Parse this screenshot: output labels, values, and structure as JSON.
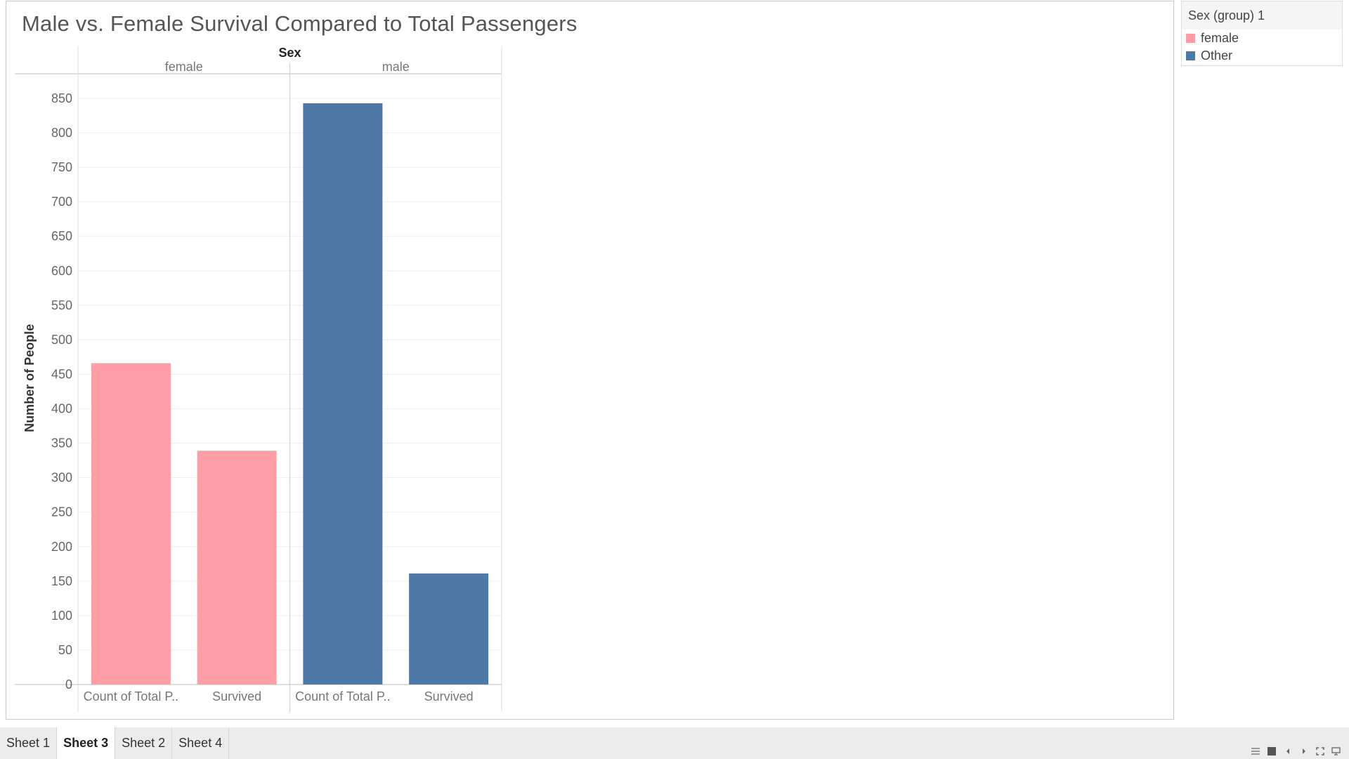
{
  "chart_data": {
    "type": "bar",
    "title": "Male vs. Female Survival Compared to Total Passengers",
    "column_header": "Sex",
    "ylabel": "Number of People",
    "ylim": [
      0,
      850
    ],
    "yticks": [
      0,
      50,
      100,
      150,
      200,
      250,
      300,
      350,
      400,
      450,
      500,
      550,
      600,
      650,
      700,
      750,
      800,
      850
    ],
    "grid": true,
    "panes": [
      {
        "name": "female",
        "color": "#ff9da7",
        "categories": [
          "Count of Total P..",
          "Survived"
        ],
        "values": [
          466,
          339
        ]
      },
      {
        "name": "male",
        "color": "#4e79a7",
        "categories": [
          "Count of Total P..",
          "Survived"
        ],
        "values": [
          843,
          161
        ]
      }
    ]
  },
  "legend": {
    "title": "Sex (group) 1",
    "items": [
      {
        "label": "female",
        "color": "#ff9da7"
      },
      {
        "label": "Other",
        "color": "#4e79a7"
      }
    ]
  },
  "tabs": {
    "items": [
      {
        "label": "Sheet 1",
        "active": false
      },
      {
        "label": "Sheet 3",
        "active": true
      },
      {
        "label": "Sheet 2",
        "active": false
      },
      {
        "label": "Sheet 4",
        "active": false
      }
    ]
  },
  "nav_controls": {
    "icons": [
      "grid-view-icon",
      "single-view-icon",
      "prev-arrow-icon",
      "next-arrow-icon",
      "fullscreen-icon",
      "present-icon"
    ]
  }
}
